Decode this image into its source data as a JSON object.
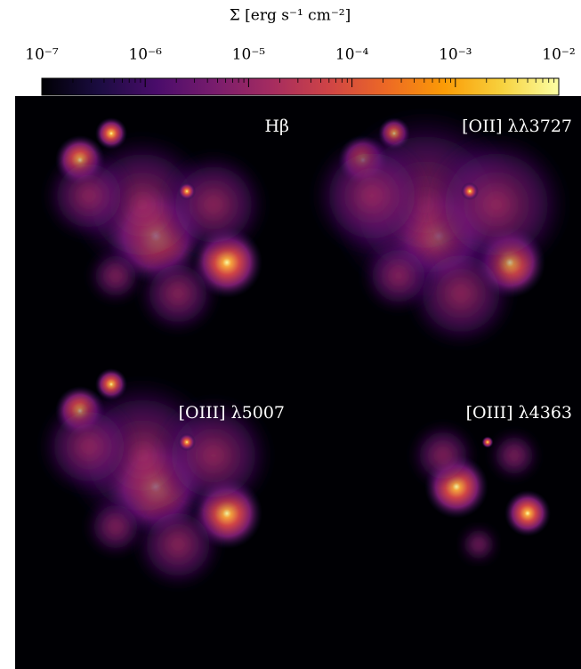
{
  "chart_data": {
    "type": "image-grid",
    "colorbar": {
      "label": "Σ [erg s⁻¹ cm⁻²]",
      "log_scale": true,
      "lim": [
        1e-07,
        0.01
      ],
      "ticks": [
        {
          "value": 1e-07,
          "label": "10⁻⁷"
        },
        {
          "value": 1e-06,
          "label": "10⁻⁶"
        },
        {
          "value": 1e-05,
          "label": "10⁻⁵"
        },
        {
          "value": 0.0001,
          "label": "10⁻⁴"
        },
        {
          "value": 0.001,
          "label": "10⁻³"
        },
        {
          "value": 0.01,
          "label": "10⁻²"
        }
      ],
      "colors": [
        "#000004",
        "#1b0c41",
        "#4a0c6b",
        "#781c6d",
        "#a52c60",
        "#cf4446",
        "#ed6925",
        "#fb9b06",
        "#f7d13d",
        "#fcffa4"
      ]
    },
    "panels": [
      {
        "title": "Hβ"
      },
      {
        "title": "[OII] λλ3727"
      },
      {
        "title": "[OIII] λ5007"
      },
      {
        "title": "[OIII] λ4363"
      }
    ]
  }
}
